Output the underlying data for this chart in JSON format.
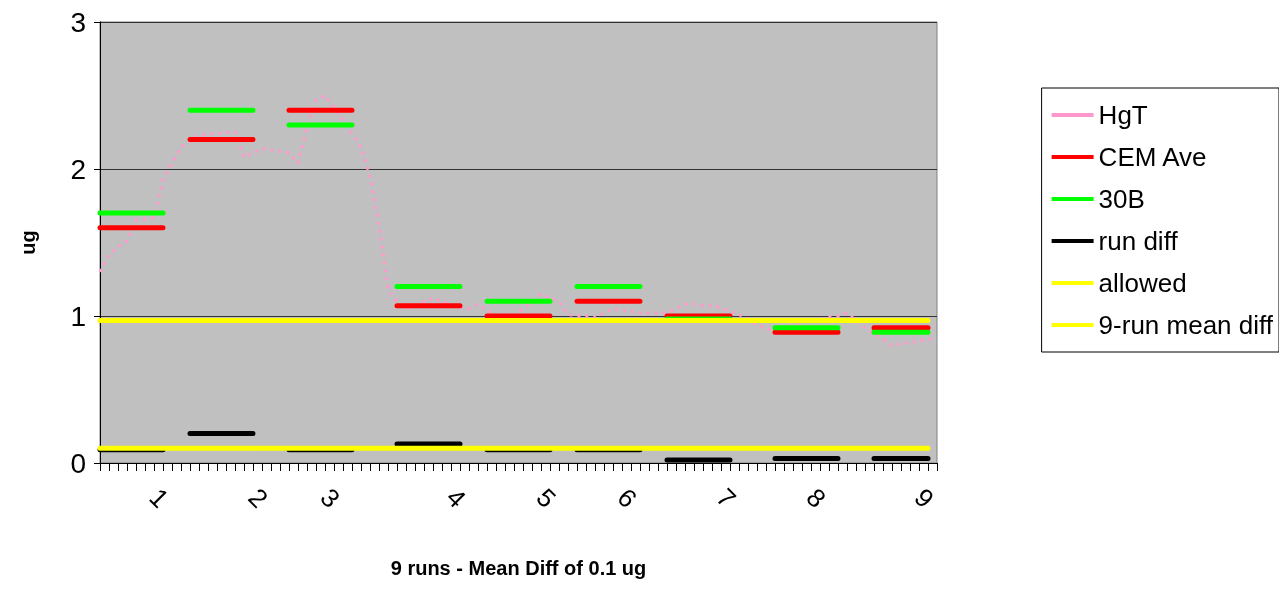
{
  "chart_data": {
    "type": "line",
    "xlabel": "9 runs - Mean Diff of 0.1 ug",
    "ylabel": "ug",
    "categories": [
      null,
      null,
      null,
      null,
      null,
      null,
      "1",
      null,
      null,
      null,
      null,
      null,
      null,
      null,
      null,
      null,
      null,
      "2",
      null,
      null,
      null,
      null,
      null,
      null,
      null,
      "3",
      null,
      null,
      null,
      null,
      null,
      null,
      null,
      null,
      null,
      null,
      null,
      null,
      null,
      "4",
      null,
      null,
      null,
      null,
      null,
      null,
      null,
      null,
      null,
      "5",
      null,
      null,
      null,
      null,
      null,
      null,
      null,
      null,
      "6",
      null,
      null,
      null,
      null,
      null,
      null,
      null,
      null,
      null,
      null,
      "7",
      null,
      null,
      null,
      null,
      null,
      null,
      null,
      null,
      null,
      "8",
      null,
      null,
      null,
      null,
      null,
      null,
      null,
      null,
      null,
      null,
      null,
      "9",
      null,
      null
    ],
    "ylim": [
      0,
      3
    ],
    "yticks": [
      0,
      1,
      2,
      3
    ],
    "grid": "y",
    "legend": "right",
    "marker": "none",
    "line_style": "solid",
    "series": [
      {
        "name": "HgT",
        "color": "#ff99cc",
        "line_style": "dotted",
        "values": [
          1.3,
          1.42,
          1.47,
          1.51,
          1.65,
          1.66,
          1.67,
          1.93,
          2.04,
          2.15,
          2.19,
          2.23,
          2.24,
          2.24,
          2.25,
          2.25,
          2.08,
          2.11,
          2.14,
          2.13,
          2.12,
          2.11,
          2.04,
          2.28,
          2.47,
          2.5,
          2.42,
          2.33,
          2.24,
          2.15,
          1.95,
          1.62,
          1.18,
          1.1,
          1.05,
          1.07,
          1.1,
          1.12,
          1.1,
          1.08,
          1.06,
          1.05,
          1.08,
          1.04,
          0.99,
          0.95,
          1.0,
          1.05,
          1.1,
          1.15,
          1.12,
          1.1,
          1.01,
          1.0,
          1.0,
          0.99,
          1.02,
          1.05,
          1.04,
          1.03,
          1.02,
          1.02,
          1.02,
          1.02,
          1.05,
          1.08,
          1.08,
          1.07,
          1.07,
          1.06,
          1.03,
          1.01,
          0.98,
          0.94,
          0.92,
          0.89,
          0.91,
          0.94,
          0.96,
          0.97,
          0.98,
          0.99,
          1.0,
          1.02,
          0.97,
          0.92,
          0.88,
          0.84,
          0.8,
          0.81,
          0.82,
          0.83,
          0.84,
          0.85
        ]
      },
      {
        "name": "CEM Ave",
        "color": "#ff0000",
        "values": [
          1.6,
          1.6,
          1.6,
          1.6,
          1.6,
          1.6,
          1.6,
          1.6,
          null,
          null,
          2.2,
          2.2,
          2.2,
          2.2,
          2.2,
          2.2,
          2.2,
          2.2,
          null,
          null,
          null,
          2.4,
          2.4,
          2.4,
          2.4,
          2.4,
          2.4,
          2.4,
          2.4,
          null,
          null,
          null,
          null,
          1.07,
          1.07,
          1.07,
          1.07,
          1.07,
          1.07,
          1.07,
          1.07,
          null,
          null,
          1.0,
          1.0,
          1.0,
          1.0,
          1.0,
          1.0,
          1.0,
          1.0,
          null,
          null,
          1.1,
          1.1,
          1.1,
          1.1,
          1.1,
          1.1,
          1.1,
          1.1,
          null,
          null,
          1.0,
          1.0,
          1.0,
          1.0,
          1.0,
          1.0,
          1.0,
          1.0,
          null,
          null,
          null,
          null,
          0.89,
          0.89,
          0.89,
          0.89,
          0.89,
          0.89,
          0.89,
          0.89,
          null,
          null,
          null,
          0.92,
          0.92,
          0.92,
          0.92,
          0.92,
          0.92,
          0.92,
          null
        ]
      },
      {
        "name": "30B",
        "color": "#00ff00",
        "values": [
          1.7,
          1.7,
          1.7,
          1.7,
          1.7,
          1.7,
          1.7,
          1.7,
          null,
          null,
          2.4,
          2.4,
          2.4,
          2.4,
          2.4,
          2.4,
          2.4,
          2.4,
          null,
          null,
          null,
          2.3,
          2.3,
          2.3,
          2.3,
          2.3,
          2.3,
          2.3,
          2.3,
          null,
          null,
          null,
          null,
          1.2,
          1.2,
          1.2,
          1.2,
          1.2,
          1.2,
          1.2,
          1.2,
          null,
          null,
          1.1,
          1.1,
          1.1,
          1.1,
          1.1,
          1.1,
          1.1,
          1.1,
          null,
          null,
          1.2,
          1.2,
          1.2,
          1.2,
          1.2,
          1.2,
          1.2,
          1.2,
          null,
          null,
          0.98,
          0.98,
          0.98,
          0.98,
          0.98,
          0.98,
          0.98,
          0.98,
          null,
          null,
          null,
          null,
          0.92,
          0.92,
          0.92,
          0.92,
          0.92,
          0.92,
          0.92,
          0.92,
          null,
          null,
          null,
          0.89,
          0.89,
          0.89,
          0.89,
          0.89,
          0.89,
          0.89,
          null
        ]
      },
      {
        "name": "run diff",
        "color": "#000000",
        "values": [
          0.09,
          0.09,
          0.09,
          0.09,
          0.09,
          0.09,
          0.09,
          0.09,
          null,
          null,
          0.2,
          0.2,
          0.2,
          0.2,
          0.2,
          0.2,
          0.2,
          0.2,
          null,
          null,
          null,
          0.09,
          0.09,
          0.09,
          0.09,
          0.09,
          0.09,
          0.09,
          0.09,
          null,
          null,
          null,
          null,
          0.13,
          0.13,
          0.13,
          0.13,
          0.13,
          0.13,
          0.13,
          0.13,
          null,
          null,
          0.09,
          0.09,
          0.09,
          0.09,
          0.09,
          0.09,
          0.09,
          0.09,
          null,
          null,
          0.09,
          0.09,
          0.09,
          0.09,
          0.09,
          0.09,
          0.09,
          0.09,
          null,
          null,
          0.02,
          0.02,
          0.02,
          0.02,
          0.02,
          0.02,
          0.02,
          0.02,
          null,
          null,
          null,
          null,
          0.03,
          0.03,
          0.03,
          0.03,
          0.03,
          0.03,
          0.03,
          0.03,
          null,
          null,
          null,
          0.03,
          0.03,
          0.03,
          0.03,
          0.03,
          0.03,
          0.03,
          null
        ]
      },
      {
        "name": "allowed",
        "color": "#ffff00",
        "values": [
          0.97,
          0.97,
          0.97,
          0.97,
          0.97,
          0.97,
          0.97,
          0.97,
          0.97,
          0.97,
          0.97,
          0.97,
          0.97,
          0.97,
          0.97,
          0.97,
          0.97,
          0.97,
          0.97,
          0.97,
          0.97,
          0.97,
          0.97,
          0.97,
          0.97,
          0.97,
          0.97,
          0.97,
          0.97,
          0.97,
          0.97,
          0.97,
          0.97,
          0.97,
          0.97,
          0.97,
          0.97,
          0.97,
          0.97,
          0.97,
          0.97,
          0.97,
          0.97,
          0.97,
          0.97,
          0.97,
          0.97,
          0.97,
          0.97,
          0.97,
          0.97,
          0.97,
          0.97,
          0.97,
          0.97,
          0.97,
          0.97,
          0.97,
          0.97,
          0.97,
          0.97,
          0.97,
          0.97,
          0.97,
          0.97,
          0.97,
          0.97,
          0.97,
          0.97,
          0.97,
          0.97,
          0.97,
          0.97,
          0.97,
          0.97,
          0.97,
          0.97,
          0.97,
          0.97,
          0.97,
          0.97,
          0.97,
          0.97,
          0.97,
          0.97,
          0.97,
          0.97,
          0.97,
          0.97,
          0.97,
          0.97,
          0.97,
          0.97,
          null
        ]
      },
      {
        "name": "9-run mean diff",
        "color": "#ffff00",
        "values": [
          0.1,
          0.1,
          0.1,
          0.1,
          0.1,
          0.1,
          0.1,
          0.1,
          0.1,
          0.1,
          0.1,
          0.1,
          0.1,
          0.1,
          0.1,
          0.1,
          0.1,
          0.1,
          0.1,
          0.1,
          0.1,
          0.1,
          0.1,
          0.1,
          0.1,
          0.1,
          0.1,
          0.1,
          0.1,
          0.1,
          0.1,
          0.1,
          0.1,
          0.1,
          0.1,
          0.1,
          0.1,
          0.1,
          0.1,
          0.1,
          0.1,
          0.1,
          0.1,
          0.1,
          0.1,
          0.1,
          0.1,
          0.1,
          0.1,
          0.1,
          0.1,
          0.1,
          0.1,
          0.1,
          0.1,
          0.1,
          0.1,
          0.1,
          0.1,
          0.1,
          0.1,
          0.1,
          0.1,
          0.1,
          0.1,
          0.1,
          0.1,
          0.1,
          0.1,
          0.1,
          0.1,
          0.1,
          0.1,
          0.1,
          0.1,
          0.1,
          0.1,
          0.1,
          0.1,
          0.1,
          0.1,
          0.1,
          0.1,
          0.1,
          0.1,
          0.1,
          0.1,
          0.1,
          0.1,
          0.1,
          0.1,
          0.1,
          0.1,
          null
        ]
      }
    ]
  }
}
